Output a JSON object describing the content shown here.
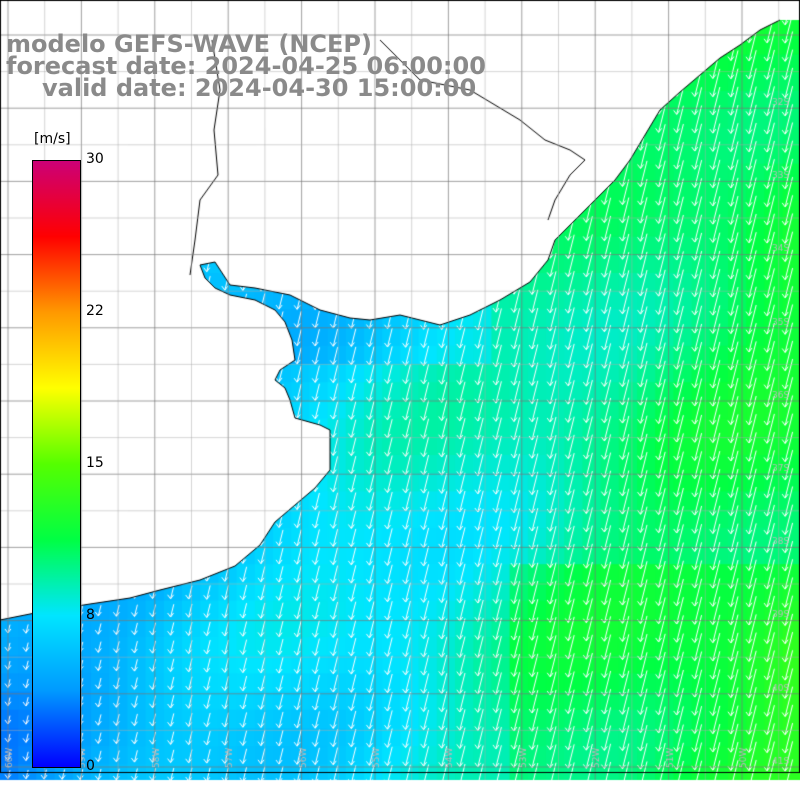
{
  "title": {
    "line1": "modelo GEFS-WAVE (NCEP)",
    "line2": "forecast date: 2024-04-25 06:00:00",
    "line3": "valid date: 2024-04-30 15:00:00"
  },
  "colorbar": {
    "unit": "[m/s]",
    "ticks": [
      "30",
      "22",
      "15",
      "8",
      "0"
    ],
    "tick_values": [
      30,
      22,
      15,
      8,
      0
    ],
    "min": 0,
    "max": 30,
    "colors": [
      "#0000ff",
      "#0099ff",
      "#00e5ff",
      "#00ff44",
      "#55ff00",
      "#ffff00",
      "#ff9900",
      "#ff0000",
      "#cc0077"
    ]
  },
  "map": {
    "field": "wind speed",
    "units": "m/s",
    "land_color": "#ffffff",
    "grid_color": "#777777",
    "arrow_color": "#ffffff",
    "lat_labels": [
      "32S",
      "33S",
      "34S",
      "35S",
      "36S",
      "37S",
      "38S",
      "39S",
      "40S",
      "41S"
    ],
    "lon_labels": [
      "60W",
      "59W",
      "58W",
      "57W",
      "56W",
      "55W",
      "54W",
      "53W",
      "52W",
      "51W",
      "50W"
    ]
  }
}
